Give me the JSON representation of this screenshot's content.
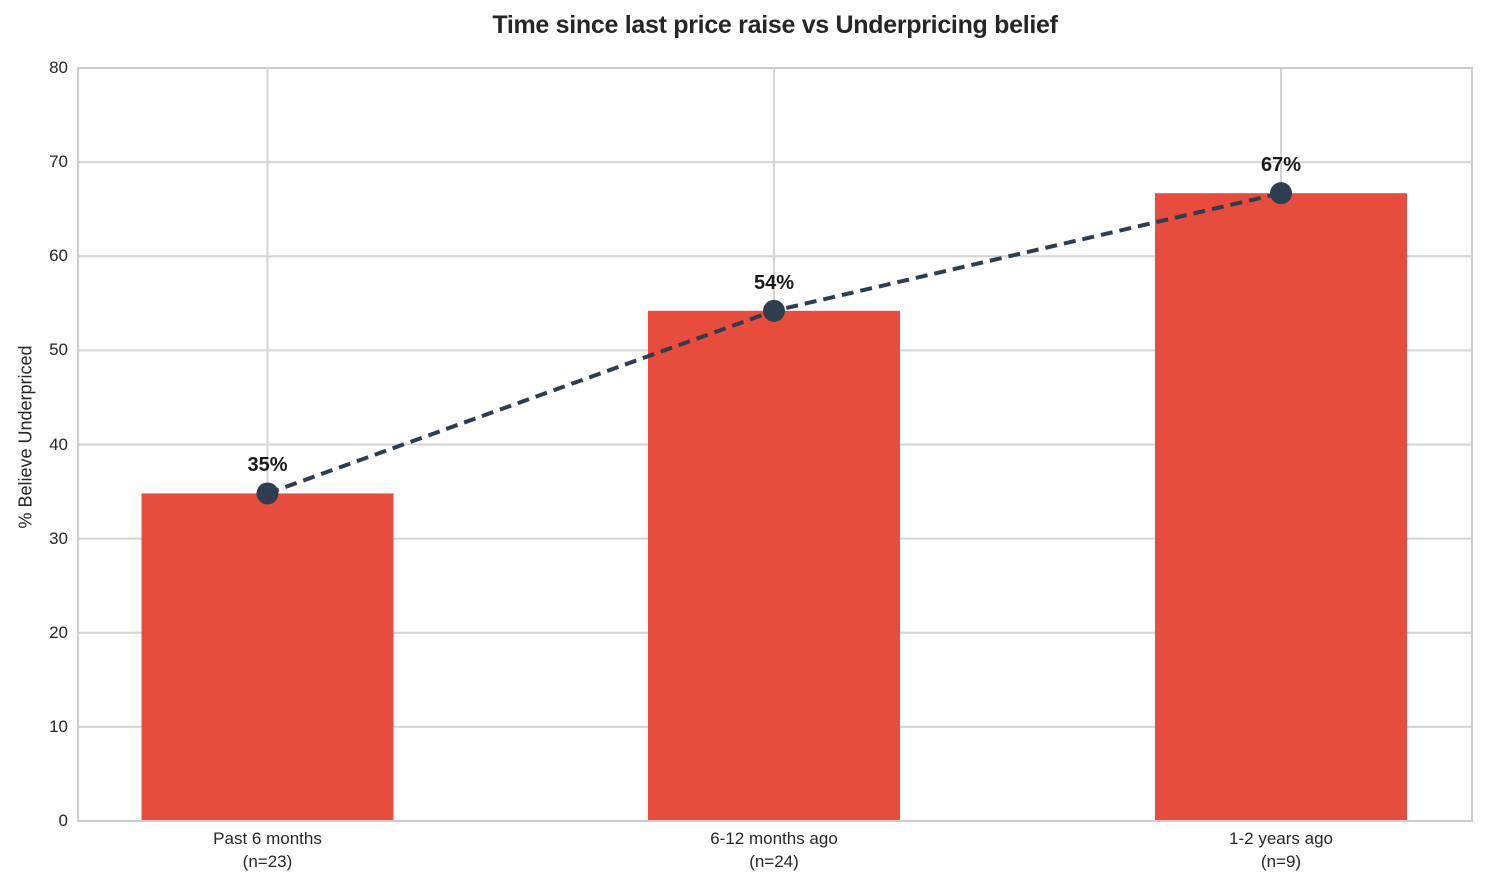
{
  "chart_data": {
    "type": "bar",
    "title": "Time since last price raise vs Underpricing belief",
    "xlabel": "",
    "ylabel": "% Believe Underpriced",
    "ylim": [
      0,
      80
    ],
    "yticks": [
      0,
      10,
      20,
      30,
      40,
      50,
      60,
      70,
      80
    ],
    "grid": true,
    "legend": false,
    "categories": [
      {
        "line1": "Past 6 months",
        "line2": "(n=23)"
      },
      {
        "line1": "6-12 months ago",
        "line2": "(n=24)"
      },
      {
        "line1": "1-2 years ago",
        "line2": "(n=9)"
      }
    ],
    "series": [
      {
        "name": "percent-believe-underpriced-bars",
        "type": "bar",
        "values": [
          34.8,
          54.2,
          66.7
        ],
        "color": "#e74c3c"
      },
      {
        "name": "trend-dashed-line",
        "type": "line",
        "style": "dashed",
        "marker": "circle",
        "values": [
          34.8,
          54.2,
          66.7
        ],
        "color": "#2c3e50"
      }
    ],
    "point_labels": [
      "35%",
      "54%",
      "67%"
    ],
    "colors": {
      "bar": "#e74c3c",
      "line": "#2c3e50",
      "grid": "#d4d4d4",
      "spine": "#cccccc",
      "text": "#262626",
      "background": "#ffffff"
    }
  }
}
